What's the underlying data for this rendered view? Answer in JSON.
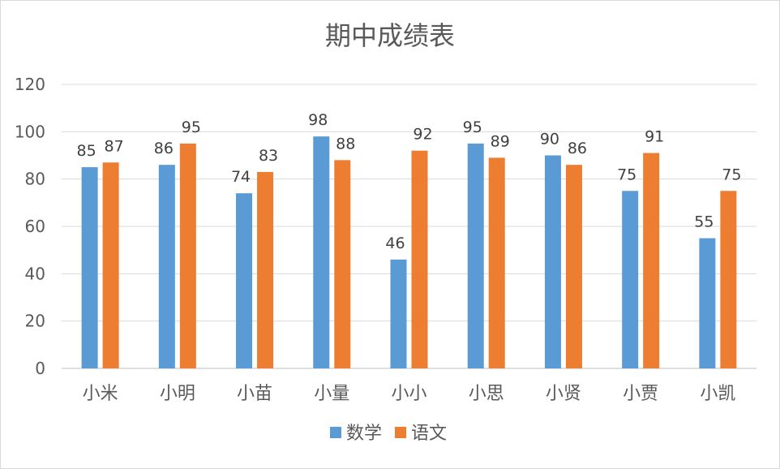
{
  "chart_data": {
    "type": "bar",
    "title": "期中成绩表",
    "categories": [
      "小米",
      "小明",
      "小苗",
      "小量",
      "小小",
      "小思",
      "小贤",
      "小贾",
      "小凯"
    ],
    "series": [
      {
        "name": "数学",
        "color": "#5b9bd5",
        "values": [
          85,
          86,
          74,
          98,
          46,
          95,
          90,
          75,
          55
        ]
      },
      {
        "name": "语文",
        "color": "#ed7d31",
        "values": [
          87,
          95,
          83,
          88,
          92,
          89,
          86,
          91,
          75
        ]
      }
    ],
    "ylim": [
      0,
      120
    ],
    "yticks": [
      0,
      20,
      40,
      60,
      80,
      100,
      120
    ],
    "grid": true,
    "legend_position": "bottom",
    "data_labels": true
  }
}
